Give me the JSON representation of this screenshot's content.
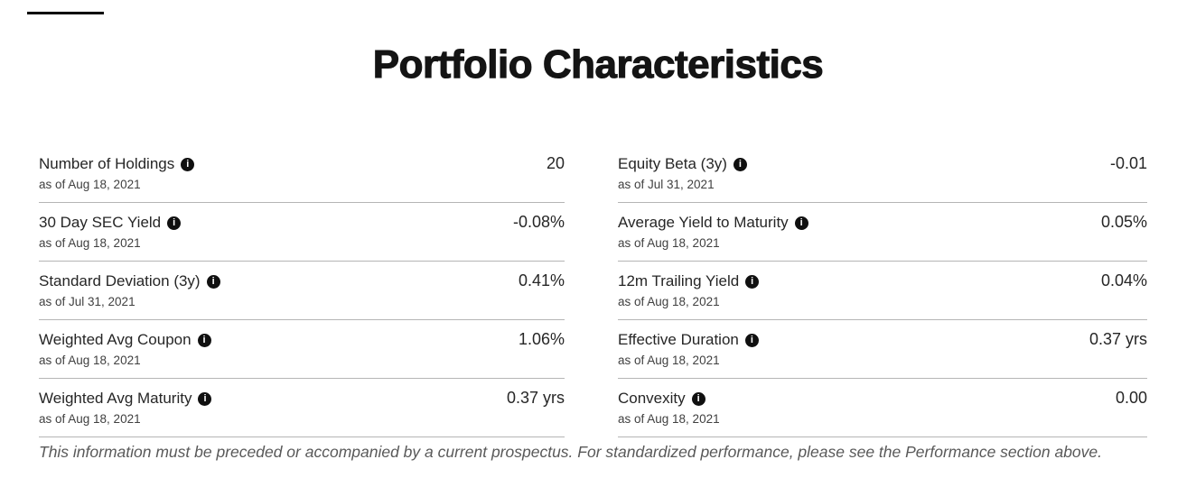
{
  "page": {
    "title": "Portfolio Characteristics"
  },
  "icons": {
    "info": "i"
  },
  "colors": {
    "text_primary": "#262626",
    "text_secondary": "#404040",
    "divider": "#b5b5b5",
    "info_icon_bg": "#101010",
    "disclaimer_text": "#595959"
  },
  "metrics": {
    "left": [
      {
        "label": "Number of Holdings",
        "value": "20",
        "as_of": "as of Aug 18, 2021"
      },
      {
        "label": "30 Day SEC Yield",
        "value": "-0.08%",
        "as_of": "as of Aug 18, 2021"
      },
      {
        "label": "Standard Deviation (3y)",
        "value": "0.41%",
        "as_of": "as of Jul 31, 2021"
      },
      {
        "label": "Weighted Avg Coupon",
        "value": "1.06%",
        "as_of": "as of Aug 18, 2021"
      },
      {
        "label": "Weighted Avg Maturity",
        "value": "0.37 yrs",
        "as_of": "as of Aug 18, 2021"
      }
    ],
    "right": [
      {
        "label": "Equity Beta (3y)",
        "value": "-0.01",
        "as_of": "as of Jul 31, 2021"
      },
      {
        "label": "Average Yield to Maturity",
        "value": "0.05%",
        "as_of": "as of Aug 18, 2021"
      },
      {
        "label": "12m Trailing Yield",
        "value": "0.04%",
        "as_of": "as of Aug 18, 2021"
      },
      {
        "label": "Effective Duration",
        "value": "0.37 yrs",
        "as_of": "as of Aug 18, 2021"
      },
      {
        "label": "Convexity",
        "value": "0.00",
        "as_of": "as of Aug 18, 2021"
      }
    ]
  },
  "disclaimer": "This information must be preceded or accompanied by a current prospectus. For standardized performance, please see the Performance section above."
}
